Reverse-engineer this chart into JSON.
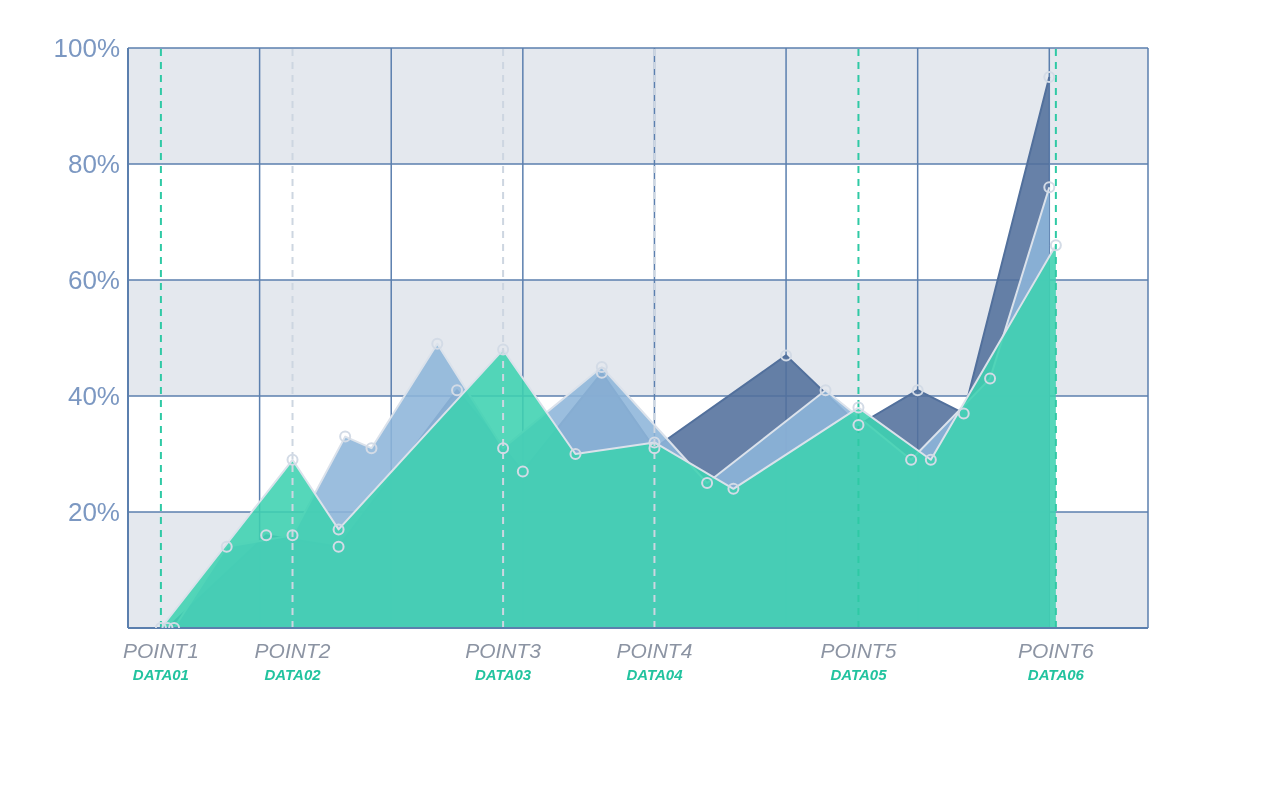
{
  "chart_data": {
    "type": "area",
    "series": [
      {
        "color": "#52709c",
        "x": [
          0.3,
          1.05,
          1.6,
          2.5,
          3.0,
          3.6,
          4.0,
          5.0,
          5.55,
          6.0,
          6.35,
          7.0
        ],
        "values": [
          0,
          16,
          14,
          41,
          27,
          44,
          31,
          47,
          35,
          41,
          37,
          95
        ]
      },
      {
        "color": "#8db5d9",
        "x": [
          0.35,
          0.75,
          1.25,
          1.65,
          1.85,
          2.35,
          2.85,
          3.6,
          4.4,
          5.3,
          5.95,
          6.55,
          7.0
        ],
        "values": [
          0,
          14,
          16,
          33,
          31,
          49,
          31,
          45,
          25,
          41,
          29,
          43,
          76
        ]
      },
      {
        "color": "#3dd1b1",
        "x": [
          0.25,
          1.25,
          1.6,
          2.85,
          3.4,
          4.0,
          4.6,
          5.55,
          6.1,
          7.05
        ],
        "values": [
          0,
          29,
          17,
          48,
          30,
          32,
          24,
          38,
          29,
          66
        ]
      }
    ],
    "xlim": [
      0,
      7.75
    ],
    "xticks": [
      {
        "value": 0,
        "label": null
      },
      {
        "value": 1,
        "label": null
      },
      {
        "value": 2,
        "label": null
      },
      {
        "value": 3,
        "label": null
      },
      {
        "value": 4,
        "label": null
      },
      {
        "value": 5,
        "label": null
      },
      {
        "value": 6,
        "label": null
      },
      {
        "value": 7,
        "label": null
      },
      {
        "value": 7.75,
        "label": null
      }
    ],
    "ylim": [
      0,
      100
    ],
    "yticks": [
      {
        "value": 20,
        "label": "20%"
      },
      {
        "value": 40,
        "label": "40%"
      },
      {
        "value": 60,
        "label": "60%"
      },
      {
        "value": 80,
        "label": "80%"
      },
      {
        "value": 100,
        "label": "100%"
      }
    ],
    "grid": true,
    "marker": "circle",
    "tick_labels": "y",
    "ref_lines": [
      {
        "axis": "x",
        "value": 0.25,
        "label": "POINT1",
        "color": "#2fc9a5",
        "line_style": "dashed"
      },
      {
        "axis": "x",
        "value": 1.25,
        "label": "POINT2",
        "color": "#cdd6e1",
        "line_style": "dashed"
      },
      {
        "axis": "x",
        "value": 2.85,
        "label": "POINT3",
        "color": "#cdd6e1",
        "line_style": "dashed"
      },
      {
        "axis": "x",
        "value": 4.0,
        "label": "POINT4",
        "color": "#cdd6e1",
        "line_style": "dashed"
      },
      {
        "axis": "x",
        "value": 5.55,
        "label": "POINT5",
        "color": "#2fc9a5",
        "line_style": "dashed"
      },
      {
        "axis": "x",
        "value": 7.05,
        "label": "POINT6",
        "color": "#2fc9a5",
        "line_style": "dashed"
      }
    ],
    "annotations": [
      "DATA01",
      "DATA02",
      "DATA03",
      "DATA04",
      "DATA05",
      "DATA06"
    ]
  }
}
